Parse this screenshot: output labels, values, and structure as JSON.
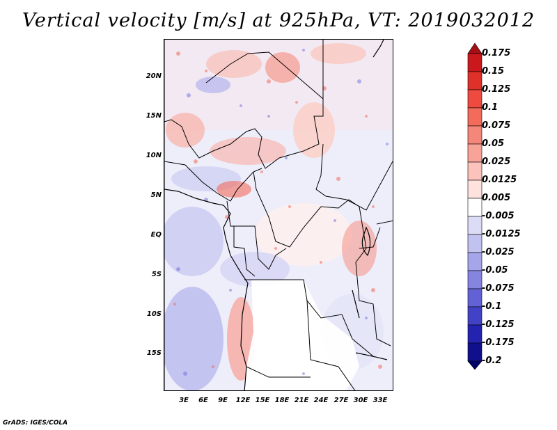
{
  "title": "Vertical velocity [m/s] at 925hPa, VT: 2019032012",
  "credit": "GrADS: IGES/COLA",
  "lat_labels": [
    "20N",
    "15N",
    "10N",
    "5N",
    "EQ",
    "5S",
    "10S",
    "15S"
  ],
  "lon_labels": [
    "3E",
    "6E",
    "9E",
    "12E",
    "15E",
    "18E",
    "21E",
    "24E",
    "27E",
    "30E",
    "33E"
  ],
  "colorbar": {
    "levels": [
      "0.175",
      "0.15",
      "0.125",
      "0.1",
      "0.075",
      "0.05",
      "0.025",
      "0.0125",
      "0.005",
      "-0.005",
      "-0.0125",
      "-0.025",
      "-0.05",
      "-0.075",
      "-0.1",
      "-0.125",
      "-0.175",
      "-0.2"
    ],
    "colors": [
      "#a50f15",
      "#cb181d",
      "#e0302a",
      "#ef4a3f",
      "#f26b5b",
      "#f5877a",
      "#f8a398",
      "#fbc3bb",
      "#fde2de",
      "#ffffff",
      "#dcdcf7",
      "#c2c2f0",
      "#a5a5ea",
      "#8585e0",
      "#6262d6",
      "#4242c6",
      "#2323b0",
      "#10108c",
      "#00006b"
    ]
  }
}
